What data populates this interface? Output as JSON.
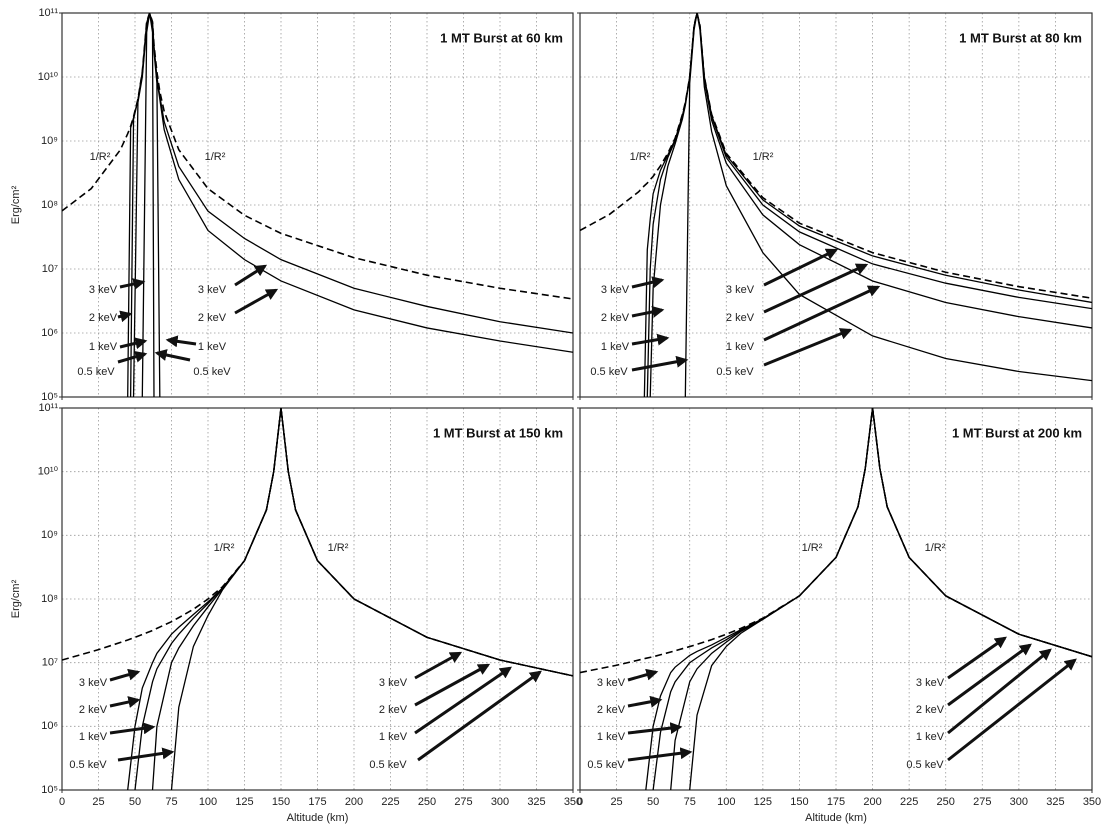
{
  "chart_data": [
    {
      "type": "line",
      "title": "1 MT Burst at 60 km",
      "ylabel": "Erg/cm²",
      "ylog": true,
      "grid": true,
      "xlim": [
        0,
        350
      ],
      "ylim": [
        100000.0,
        100000000000.0
      ],
      "xticks": [
        0,
        25,
        50,
        75,
        100,
        125,
        150,
        175,
        200,
        225,
        250,
        275,
        300,
        325,
        350
      ],
      "yticks": [
        {
          "value": 100000.0,
          "label": "10⁵"
        },
        {
          "value": 1000000.0,
          "label": "10⁶"
        },
        {
          "value": 10000000.0,
          "label": "10⁷"
        },
        {
          "value": 100000000.0,
          "label": "10⁸"
        },
        {
          "value": 1000000000.0,
          "label": "10⁹"
        },
        {
          "value": 10000000000.0,
          "label": "10¹⁰"
        },
        {
          "value": 100000000000.0,
          "label": "10¹¹"
        }
      ],
      "x": [
        0,
        20,
        40,
        45,
        47,
        49,
        52,
        55,
        58,
        60,
        62,
        63,
        65,
        67,
        70,
        80,
        100,
        125,
        150,
        200,
        250,
        300,
        350
      ],
      "series": [
        {
          "name": "1/R²",
          "color": "#000000",
          "dashed": true,
          "values": [
            81000000.0,
            180000000.0,
            730000000.0,
            1300000000.0,
            1700000000.0,
            2400000000.0,
            4500000000.0,
            12000000000.0,
            73000000000.0,
            100000000000.0,
            73000000000.0,
            32000000000.0,
            12000000000.0,
            5900000000.0,
            2900000000.0,
            730000000.0,
            180000000.0,
            69000000.0,
            36000000.0,
            15000000.0,
            8000000.0,
            5000000.0,
            3400000.0
          ]
        },
        {
          "name": "3 keV",
          "color": "#000000",
          "values": [
            null,
            null,
            null,
            100000.0,
            1600000000.0,
            2300000000.0,
            4400000000.0,
            12000000000.0,
            70000000000.0,
            100000000000.0,
            70000000000.0,
            30000000000.0,
            10000000000.0,
            5000000000.0,
            2000000000.0,
            400000000.0,
            80000000.0,
            30000000.0,
            14000000.0,
            5000000.0,
            2600000.0,
            1500000.0,
            1000000.0
          ]
        },
        {
          "name": "2 keV",
          "color": "#000000",
          "values": [
            null,
            null,
            null,
            null,
            100000.0,
            2200000000.0,
            4300000000.0,
            11000000000.0,
            65000000000.0,
            100000000000.0,
            65000000000.0,
            28000000000.0,
            9000000000.0,
            4500000000.0,
            1500000000.0,
            250000000.0,
            40000000.0,
            14000000.0,
            6500000.0,
            2300000.0,
            1200000.0,
            750000.0,
            500000.0
          ]
        },
        {
          "name": "1 keV",
          "color": "#000000",
          "values": [
            null,
            null,
            null,
            null,
            null,
            100000.0,
            4000000000.0,
            10000000000.0,
            60000000000.0,
            100000000000.0,
            60000000000.0,
            25000000000.0,
            8000000000.0,
            100000.0,
            null,
            null,
            null,
            null,
            null,
            null,
            null,
            null,
            null
          ]
        },
        {
          "name": "0.5 keV",
          "color": "#000000",
          "values": [
            null,
            null,
            null,
            null,
            null,
            null,
            null,
            100000.0,
            50000000000.0,
            100000000000.0,
            50000000000.0,
            100000.0,
            null,
            null,
            null,
            null,
            null,
            null,
            null,
            null,
            null,
            null,
            null
          ]
        }
      ]
    },
    {
      "type": "line",
      "title": "1 MT Burst at 80 km",
      "ylog": true,
      "grid": true,
      "xlim": [
        0,
        350
      ],
      "ylim": [
        100000.0,
        100000000000.0
      ],
      "xticks": [
        0,
        25,
        50,
        75,
        100,
        125,
        150,
        175,
        200,
        225,
        250,
        275,
        300,
        325,
        350
      ],
      "yticks": [
        100000,
        1000000,
        10000000,
        100000000,
        1000000000,
        10000000000,
        100000000000
      ],
      "x": [
        0,
        20,
        40,
        44,
        46,
        48,
        50,
        55,
        60,
        65,
        70,
        72,
        75,
        78,
        80,
        82,
        85,
        90,
        100,
        125,
        150,
        200,
        250,
        300,
        350
      ],
      "series": [
        {
          "name": "1/R²",
          "color": "#000000",
          "dashed": true,
          "values": [
            40000000.0,
            71000000.0,
            160000000.0,
            200000000.0,
            220000000.0,
            250000000.0,
            280000000.0,
            410000000.0,
            640000000.0,
            1100000000.0,
            2600000000.0,
            4000000000.0,
            10000000000.0,
            64000000000.0,
            100000000000.0,
            64000000000.0,
            10000000000.0,
            2600000000.0,
            640000000.0,
            130000000.0,
            52000000.0,
            18000000.0,
            8900000.0,
            5300000.0,
            3500000.0
          ]
        },
        {
          "name": "3 keV",
          "color": "#000000",
          "values": [
            null,
            null,
            null,
            100000.0,
            20000000.0,
            60000000.0,
            150000000.0,
            350000000.0,
            600000000.0,
            1050000000.0,
            2500000000.0,
            3900000000.0,
            10000000000.0,
            63000000000.0,
            100000000000.0,
            63000000000.0,
            10000000000.0,
            2500000000.0,
            600000000.0,
            120000000.0,
            47000000.0,
            16000000.0,
            8000000.0,
            4700000.0,
            3000000.0
          ]
        },
        {
          "name": "2 keV",
          "color": "#000000",
          "values": [
            null,
            null,
            null,
            null,
            100000.0,
            10000000.0,
            50000000.0,
            250000000.0,
            550000000.0,
            1000000000.0,
            2400000000.0,
            3800000000.0,
            9800000000.0,
            62000000000.0,
            100000000000.0,
            62000000000.0,
            9500000000.0,
            2400000000.0,
            550000000.0,
            100000000.0,
            38000000.0,
            12000000.0,
            6000000.0,
            3600000.0,
            2400000.0
          ]
        },
        {
          "name": "1 keV",
          "color": "#000000",
          "values": [
            null,
            null,
            null,
            null,
            null,
            100000.0,
            5000000.0,
            100000000.0,
            400000000.0,
            900000000.0,
            2200000000.0,
            3600000000.0,
            9500000000.0,
            60000000000.0,
            100000000000.0,
            60000000000.0,
            9000000000.0,
            2100000000.0,
            450000000.0,
            70000000.0,
            24000000.0,
            6500000.0,
            3000000.0,
            1800000.0,
            1200000.0
          ]
        },
        {
          "name": "0.5 keV",
          "color": "#000000",
          "values": [
            null,
            null,
            null,
            null,
            null,
            null,
            null,
            null,
            null,
            null,
            null,
            100000.0,
            8000000000.0,
            55000000000.0,
            100000000000.0,
            55000000000.0,
            7000000000.0,
            1400000000.0,
            200000000.0,
            18000000.0,
            4000000.0,
            900000.0,
            400000.0,
            250000.0,
            180000.0
          ]
        }
      ]
    },
    {
      "type": "line",
      "title": "1 MT Burst at 150 km",
      "ylabel": "Erg/cm²",
      "xlabel": "Altitude (km)",
      "ylog": true,
      "grid": true,
      "xlim": [
        0,
        350
      ],
      "ylim": [
        100000.0,
        100000000000.0
      ],
      "xticks": [
        0,
        25,
        50,
        75,
        100,
        125,
        150,
        175,
        200,
        225,
        250,
        275,
        300,
        325,
        350
      ],
      "yticks": [
        {
          "value": 100000.0,
          "label": "10⁵"
        },
        {
          "value": 1000000.0,
          "label": "10⁶"
        },
        {
          "value": 10000000.0,
          "label": "10⁷"
        },
        {
          "value": 100000000.0,
          "label": "10⁸"
        },
        {
          "value": 1000000000.0,
          "label": "10⁹"
        },
        {
          "value": 10000000000.0,
          "label": "10¹⁰"
        },
        {
          "value": 100000000000.0,
          "label": "10¹¹"
        }
      ],
      "x": [
        0,
        25,
        45,
        50,
        55,
        62,
        65,
        75,
        80,
        90,
        100,
        110,
        125,
        140,
        145,
        150,
        155,
        160,
        175,
        200,
        250,
        300,
        350
      ],
      "series": [
        {
          "name": "1/R²",
          "color": "#000000",
          "dashed": true,
          "values": [
            11000000.0,
            16000000.0,
            22700000.0,
            25000000.0,
            27700000.0,
            32000000.0,
            34600000.0,
            44000000.0,
            51000000.0,
            69000000.0,
            100000000.0,
            156000000.0,
            400000000.0,
            2500000000.0,
            10000000000.0,
            100000000000.0,
            10000000000.0,
            2500000000.0,
            400000000.0,
            100000000.0,
            25000000.0,
            11000000.0,
            6200000.0
          ]
        },
        {
          "name": "3 keV",
          "color": "#000000",
          "values": [
            null,
            null,
            100000.0,
            1000000.0,
            4000000.0,
            10000000.0,
            14000000.0,
            28000000.0,
            36000000.0,
            57000000.0,
            90000000.0,
            150000000.0,
            400000000.0,
            2500000000.0,
            10000000000.0,
            100000000000.0,
            10000000000.0,
            2500000000.0,
            400000000.0,
            100000000.0,
            25000000.0,
            11000000.0,
            6200000.0
          ]
        },
        {
          "name": "2 keV",
          "color": "#000000",
          "values": [
            null,
            null,
            null,
            100000.0,
            1000000.0,
            5000000.0,
            8000000.0,
            20000000.0,
            28000000.0,
            50000000.0,
            85000000.0,
            148000000.0,
            400000000.0,
            2500000000.0,
            10000000000.0,
            100000000000.0,
            10000000000.0,
            2500000000.0,
            400000000.0,
            100000000.0,
            25000000.0,
            11000000.0,
            6200000.0
          ]
        },
        {
          "name": "1 keV",
          "color": "#000000",
          "values": [
            null,
            null,
            null,
            null,
            null,
            100000.0,
            1000000.0,
            10000000.0,
            17000000.0,
            38000000.0,
            75000000.0,
            145000000.0,
            400000000.0,
            2500000000.0,
            10000000000.0,
            100000000000.0,
            10000000000.0,
            2500000000.0,
            400000000.0,
            100000000.0,
            25000000.0,
            11000000.0,
            6200000.0
          ]
        },
        {
          "name": "0.5 keV",
          "color": "#000000",
          "values": [
            null,
            null,
            null,
            null,
            null,
            null,
            null,
            100000.0,
            2000000.0,
            18000000.0,
            55000000.0,
            140000000.0,
            400000000.0,
            2500000000.0,
            10000000000.0,
            100000000000.0,
            10000000000.0,
            2500000000.0,
            400000000.0,
            100000000.0,
            25000000.0,
            11000000.0,
            6200000.0
          ]
        }
      ]
    },
    {
      "type": "line",
      "title": "1 MT Burst at 200 km",
      "xlabel": "Altitude (km)",
      "ylog": true,
      "grid": true,
      "xlim": [
        0,
        350
      ],
      "ylim": [
        100000.0,
        100000000000.0
      ],
      "xticks": [
        0,
        25,
        50,
        75,
        100,
        125,
        150,
        175,
        200,
        225,
        250,
        275,
        300,
        325,
        350
      ],
      "yticks": [
        100000,
        1000000,
        10000000,
        100000000,
        1000000000,
        10000000000,
        100000000000
      ],
      "x": [
        0,
        25,
        45,
        50,
        55,
        62,
        65,
        75,
        80,
        90,
        100,
        110,
        125,
        150,
        175,
        190,
        195,
        200,
        205,
        210,
        225,
        250,
        300,
        350
      ],
      "series": [
        {
          "name": "1/R²",
          "color": "#000000",
          "dashed": true,
          "values": [
            7000000.0,
            9100000.0,
            11700000.0,
            12400000.0,
            13300000.0,
            14700000.0,
            15400000.0,
            17900000.0,
            19400000.0,
            23000000.0,
            28000000.0,
            34600000.0,
            50000000.0,
            112000000.0,
            450000000.0,
            2800000000.0,
            11200000000.0,
            100000000000.0,
            11200000000.0,
            2800000000.0,
            450000000.0,
            112000000.0,
            28000000.0,
            12400000.0
          ]
        },
        {
          "name": "3 keV",
          "color": "#000000",
          "values": [
            null,
            null,
            100000.0,
            1000000.0,
            3000000.0,
            7000000.0,
            8500000.0,
            13000000.0,
            15000000.0,
            19000000.0,
            25000000.0,
            33000000.0,
            49000000.0,
            112000000.0,
            450000000.0,
            2800000000.0,
            11200000000.0,
            100000000000.0,
            11200000000.0,
            2800000000.0,
            450000000.0,
            112000000.0,
            28000000.0,
            12400000.0
          ]
        },
        {
          "name": "2 keV",
          "color": "#000000",
          "values": [
            null,
            null,
            null,
            100000.0,
            800000.0,
            3500000.0,
            5000000.0,
            10000000.0,
            12000000.0,
            17000000.0,
            23000000.0,
            32000000.0,
            49000000.0,
            112000000.0,
            450000000.0,
            2800000000.0,
            11200000000.0,
            100000000000.0,
            11200000000.0,
            2800000000.0,
            450000000.0,
            112000000.0,
            28000000.0,
            12400000.0
          ]
        },
        {
          "name": "1 keV",
          "color": "#000000",
          "values": [
            null,
            null,
            null,
            null,
            null,
            100000.0,
            600000.0,
            5000000.0,
            8000000.0,
            14000000.0,
            21000000.0,
            31000000.0,
            48000000.0,
            112000000.0,
            450000000.0,
            2800000000.0,
            11200000000.0,
            100000000000.0,
            11200000000.0,
            2800000000.0,
            450000000.0,
            112000000.0,
            28000000.0,
            12400000.0
          ]
        },
        {
          "name": "0.5 keV",
          "color": "#000000",
          "values": [
            null,
            null,
            null,
            null,
            null,
            null,
            null,
            100000.0,
            1500000.0,
            9000000.0,
            18000000.0,
            29000000.0,
            48000000.0,
            112000000.0,
            450000000.0,
            2800000000.0,
            11200000000.0,
            100000000000.0,
            11200000000.0,
            2800000000.0,
            450000000.0,
            112000000.0,
            28000000.0,
            12400000.0
          ]
        }
      ]
    }
  ]
}
